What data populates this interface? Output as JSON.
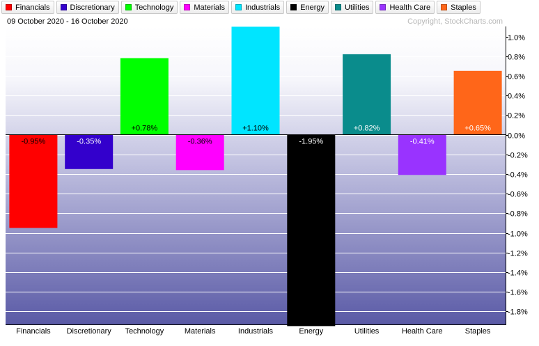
{
  "header": {
    "date_range": "09 October 2020 - 16 October 2020",
    "copyright": "Copyright, StockCharts.com"
  },
  "legend": [
    {
      "label": "Financials",
      "color": "#ff0000"
    },
    {
      "label": "Discretionary",
      "color": "#3300cc"
    },
    {
      "label": "Technology",
      "color": "#00ff00"
    },
    {
      "label": "Materials",
      "color": "#ff00ff"
    },
    {
      "label": "Industrials",
      "color": "#00e5ff"
    },
    {
      "label": "Energy",
      "color": "#000000"
    },
    {
      "label": "Utilities",
      "color": "#0a8c8c"
    },
    {
      "label": "Health Care",
      "color": "#9933ff"
    },
    {
      "label": "Staples",
      "color": "#ff6619"
    }
  ],
  "chart_data": {
    "type": "bar",
    "categories": [
      "Financials",
      "Discretionary",
      "Technology",
      "Materials",
      "Industrials",
      "Energy",
      "Utilities",
      "Health Care",
      "Staples"
    ],
    "values": [
      -0.95,
      -0.35,
      0.78,
      -0.36,
      1.1,
      -1.95,
      0.82,
      -0.41,
      0.65
    ],
    "data_labels": [
      "-0.95%",
      "-0.35%",
      "+0.78%",
      "-0.36%",
      "+1.10%",
      "-1.95%",
      "+0.82%",
      "-0.41%",
      "+0.65%"
    ],
    "colors": [
      "#ff0000",
      "#3300cc",
      "#00ff00",
      "#ff00ff",
      "#00e5ff",
      "#000000",
      "#0a8c8c",
      "#9933ff",
      "#ff6619"
    ],
    "data_label_colors": [
      "#000000",
      "#ffffff",
      "#000000",
      "#000000",
      "#000000",
      "#ffffff",
      "#ffffff",
      "#ffffff",
      "#ffffff"
    ],
    "y_ticks": [
      1.0,
      0.8,
      0.6,
      0.4,
      0.2,
      0.0,
      -0.2,
      -0.4,
      -0.6,
      -0.8,
      -1.0,
      -1.2,
      -1.4,
      -1.6,
      -1.8
    ],
    "y_tick_labels": [
      "1.0%",
      "0.8%",
      "0.6%",
      "0.4%",
      "0.2%",
      "0.0%",
      "-0.2%",
      "-0.4%",
      "-0.6%",
      "-0.8%",
      "-1.0%",
      "-1.2%",
      "-1.4%",
      "-1.6%",
      "-1.8%"
    ],
    "ylim": [
      -1.95,
      1.13
    ],
    "grid": true,
    "y_axis_position": "right",
    "legend_position": "top"
  }
}
